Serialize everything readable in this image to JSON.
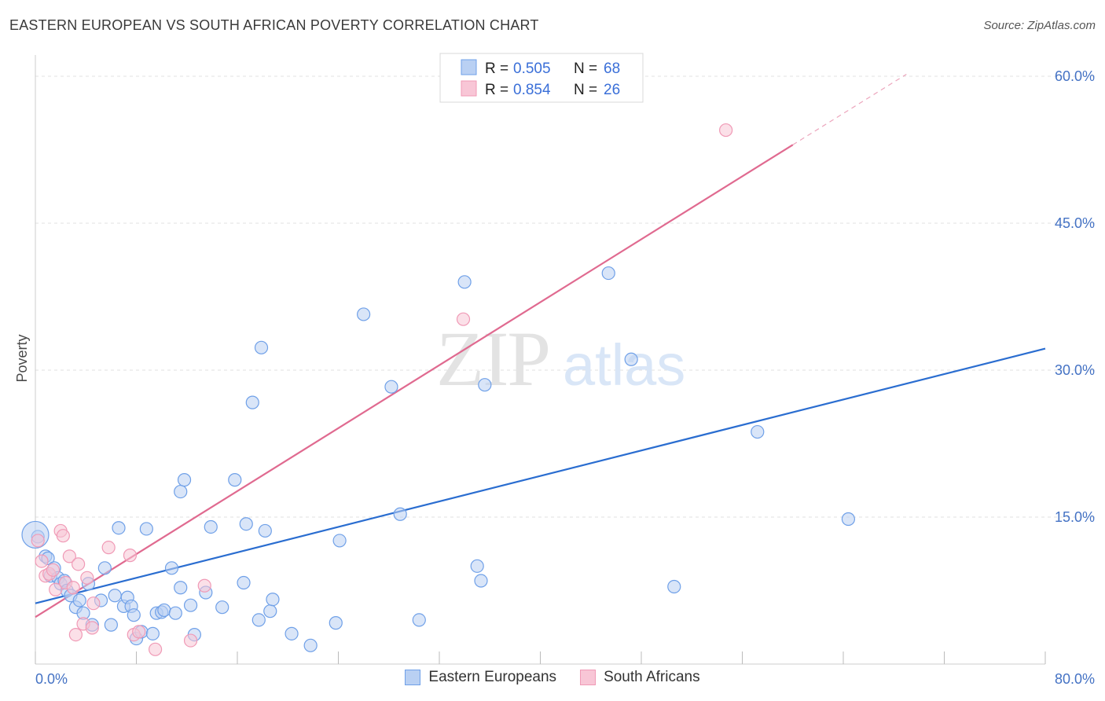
{
  "title": "EASTERN EUROPEAN VS SOUTH AFRICAN POVERTY CORRELATION CHART",
  "source": "Source: ZipAtlas.com",
  "watermark": {
    "zip": "ZIP",
    "atlas": "atlas"
  },
  "chart_data": {
    "type": "scatter",
    "ylabel": "Poverty",
    "xlim": [
      0,
      80
    ],
    "ylim": [
      0,
      63
    ],
    "x_ticks": [
      {
        "value": 0,
        "label": "0.0%"
      },
      {
        "value": 80,
        "label": "80.0%"
      }
    ],
    "y_ticks": [
      {
        "value": 15,
        "label": "15.0%"
      },
      {
        "value": 30,
        "label": "30.0%"
      },
      {
        "value": 45,
        "label": "45.0%"
      },
      {
        "value": 60,
        "label": "60.0%"
      }
    ],
    "grid": true,
    "legend_position": "top-center",
    "legend": [
      {
        "r_label": "R =",
        "r_value": "0.505",
        "n_label": "N =",
        "n_value": "68"
      },
      {
        "r_label": "R =",
        "r_value": "0.854",
        "n_label": "N =",
        "n_value": "26"
      }
    ],
    "series": [
      {
        "name": "Eastern Europeans",
        "color": "#6fa0e8",
        "fill": "#b9d0f3",
        "trend_color": "#2a6dd0",
        "trend": {
          "x0": 0,
          "y0": 6.2,
          "x1": 80,
          "y1": 32.2
        },
        "points": [
          [
            0.2,
            13.0
          ],
          [
            0.8,
            11.0
          ],
          [
            1.0,
            10.8
          ],
          [
            1.2,
            9.0
          ],
          [
            1.5,
            9.8
          ],
          [
            1.8,
            8.8
          ],
          [
            2.0,
            8.2
          ],
          [
            2.3,
            8.5
          ],
          [
            2.5,
            7.5
          ],
          [
            2.8,
            7.0
          ],
          [
            3.2,
            5.8
          ],
          [
            3.5,
            6.5
          ],
          [
            3.8,
            5.2
          ],
          [
            4.2,
            8.2
          ],
          [
            4.5,
            4.0
          ],
          [
            5.2,
            6.5
          ],
          [
            5.5,
            9.8
          ],
          [
            6.0,
            4.0
          ],
          [
            6.3,
            7.0
          ],
          [
            6.6,
            13.9
          ],
          [
            7.0,
            5.9
          ],
          [
            7.3,
            6.8
          ],
          [
            7.6,
            5.9
          ],
          [
            7.8,
            5.0
          ],
          [
            8.0,
            2.6
          ],
          [
            8.4,
            3.3
          ],
          [
            8.8,
            13.8
          ],
          [
            9.3,
            3.1
          ],
          [
            9.6,
            5.2
          ],
          [
            10.0,
            5.3
          ],
          [
            10.2,
            5.5
          ],
          [
            10.8,
            9.8
          ],
          [
            11.5,
            17.6
          ],
          [
            11.1,
            5.2
          ],
          [
            11.5,
            7.8
          ],
          [
            11.8,
            18.8
          ],
          [
            12.3,
            6.0
          ],
          [
            12.6,
            3.0
          ],
          [
            13.5,
            7.3
          ],
          [
            13.9,
            14.0
          ],
          [
            14.8,
            5.8
          ],
          [
            15.8,
            18.8
          ],
          [
            16.5,
            8.3
          ],
          [
            16.7,
            14.3
          ],
          [
            17.2,
            26.7
          ],
          [
            17.7,
            4.5
          ],
          [
            17.9,
            32.3
          ],
          [
            18.2,
            13.6
          ],
          [
            18.6,
            5.4
          ],
          [
            18.8,
            6.6
          ],
          [
            20.3,
            3.1
          ],
          [
            21.8,
            1.9
          ],
          [
            23.8,
            4.2
          ],
          [
            24.1,
            12.6
          ],
          [
            26.0,
            35.7
          ],
          [
            28.2,
            28.3
          ],
          [
            28.9,
            15.3
          ],
          [
            30.4,
            4.5
          ],
          [
            34.0,
            39.0
          ],
          [
            35.0,
            10.0
          ],
          [
            35.3,
            8.5
          ],
          [
            35.6,
            28.5
          ],
          [
            45.4,
            39.9
          ],
          [
            47.2,
            31.1
          ],
          [
            50.6,
            7.9
          ],
          [
            57.2,
            23.7
          ],
          [
            64.4,
            14.8
          ],
          [
            0.0,
            13.2
          ]
        ]
      },
      {
        "name": "South Africans",
        "color": "#f09ab6",
        "fill": "#f8c6d6",
        "trend_color": "#e06a90",
        "trend": {
          "x0": 0,
          "y0": 4.8,
          "x1": 60,
          "y1": 53.0
        },
        "trend_dashed": {
          "x0": 60,
          "y0": 53.0,
          "x1": 69,
          "y1": 60.2
        },
        "points": [
          [
            0.2,
            12.6
          ],
          [
            0.5,
            10.5
          ],
          [
            0.8,
            9.0
          ],
          [
            1.1,
            9.2
          ],
          [
            1.4,
            9.6
          ],
          [
            1.6,
            7.6
          ],
          [
            2.0,
            13.6
          ],
          [
            2.2,
            13.1
          ],
          [
            2.4,
            8.3
          ],
          [
            2.7,
            11.0
          ],
          [
            3.0,
            7.8
          ],
          [
            3.2,
            3.0
          ],
          [
            3.4,
            10.2
          ],
          [
            3.8,
            4.1
          ],
          [
            4.1,
            8.8
          ],
          [
            4.5,
            3.7
          ],
          [
            4.6,
            6.2
          ],
          [
            5.8,
            11.9
          ],
          [
            7.5,
            11.1
          ],
          [
            7.8,
            3.0
          ],
          [
            8.2,
            3.3
          ],
          [
            9.5,
            1.5
          ],
          [
            12.3,
            2.4
          ],
          [
            13.4,
            8.0
          ],
          [
            33.9,
            35.2
          ],
          [
            54.7,
            54.5
          ]
        ]
      }
    ]
  }
}
